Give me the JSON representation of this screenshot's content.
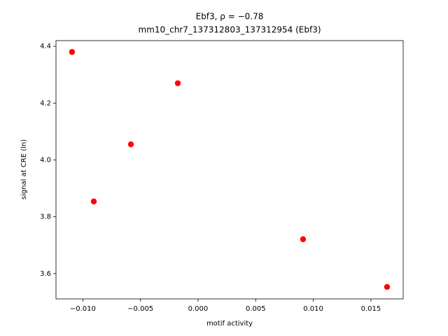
{
  "chart_data": {
    "type": "scatter",
    "title": [
      "Ebf3, ρ = −0.78",
      "mm10_chr7_137312803_137312954 (Ebf3)"
    ],
    "xlabel": "motif activity",
    "ylabel": "signal at CRE (ln)",
    "x": [
      -0.01094,
      -0.00176,
      -0.00583,
      -0.00905,
      0.00911,
      0.0164
    ],
    "values": [
      4.38,
      4.27,
      4.055,
      3.854,
      3.721,
      3.553
    ],
    "color": "#ff0000",
    "xlim": [
      -0.01233,
      0.0178
    ],
    "ylim": [
      3.511,
      4.42
    ],
    "xticks": [
      {
        "value": -0.01,
        "label": "−0.010"
      },
      {
        "value": -0.005,
        "label": "−0.005"
      },
      {
        "value": 0,
        "label": "0.000"
      },
      {
        "value": 0.005,
        "label": "0.005"
      },
      {
        "value": 0.01,
        "label": "0.010"
      },
      {
        "value": 0.015,
        "label": "0.015"
      }
    ],
    "yticks": [
      3.6,
      3.8,
      {
        "value": 4,
        "label": "4.0"
      },
      4.2,
      4.4
    ],
    "grid": false
  }
}
